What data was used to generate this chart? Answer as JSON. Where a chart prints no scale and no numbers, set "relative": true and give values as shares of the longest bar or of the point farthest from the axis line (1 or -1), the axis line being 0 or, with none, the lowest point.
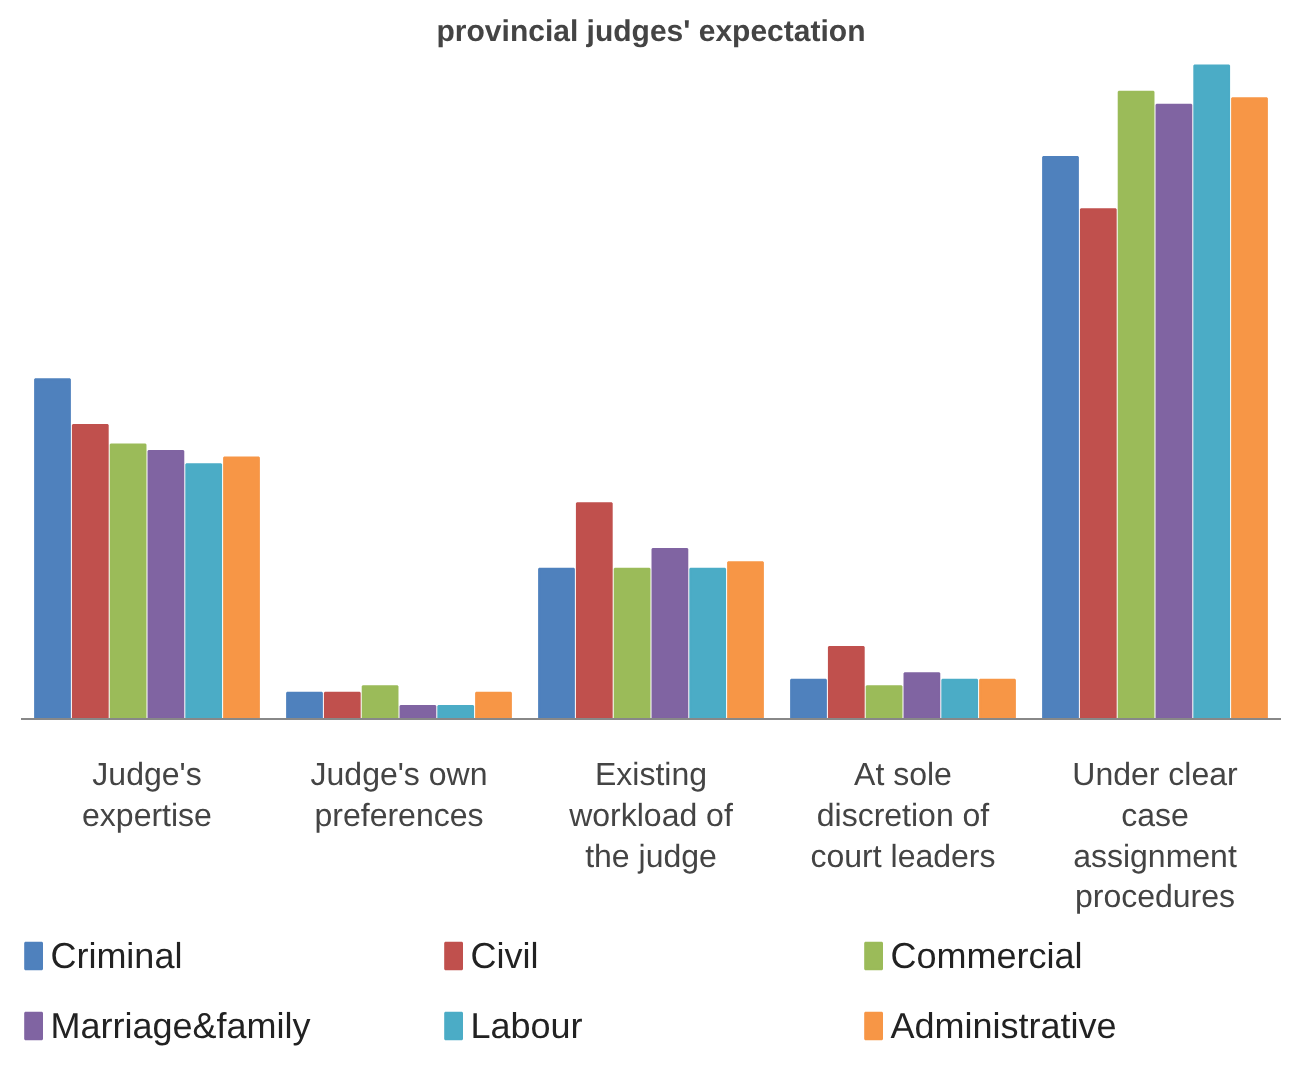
{
  "chart_data": {
    "type": "bar",
    "title": "provincial judges' expectation",
    "relative": true,
    "legend": "bottom",
    "categories": [
      "Judge's expertise",
      "Judge's own preferences",
      "Existing workload of the judge",
      "At sole discretion of court leaders",
      "Under clear case assignment procedures"
    ],
    "series": [
      {
        "name": "Criminal",
        "color": "#4f81bd",
        "values": [
          0.52,
          0.04,
          0.23,
          0.06,
          0.86
        ]
      },
      {
        "name": "Civil",
        "color": "#c0504d",
        "values": [
          0.45,
          0.04,
          0.33,
          0.11,
          0.78
        ]
      },
      {
        "name": "Commercial",
        "color": "#9bbb59",
        "values": [
          0.42,
          0.05,
          0.23,
          0.05,
          0.96
        ]
      },
      {
        "name": "Marriage&family",
        "color": "#8064a2",
        "values": [
          0.41,
          0.02,
          0.26,
          0.07,
          0.94
        ]
      },
      {
        "name": "Labour",
        "color": "#4bacc6",
        "values": [
          0.39,
          0.02,
          0.23,
          0.06,
          1
        ]
      },
      {
        "name": "Administrative",
        "color": "#f79646",
        "values": [
          0.4,
          0.04,
          0.24,
          0.06,
          0.95
        ]
      }
    ]
  }
}
